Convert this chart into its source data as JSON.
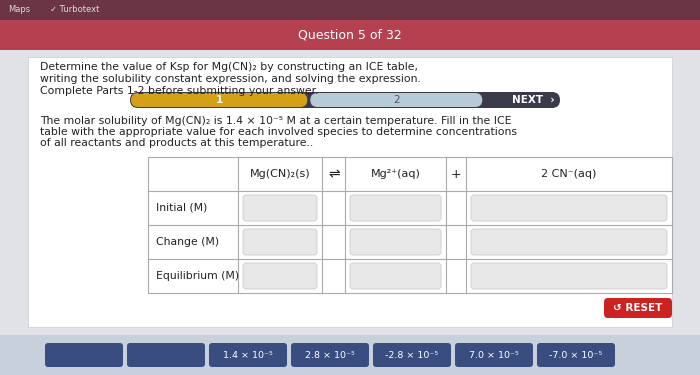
{
  "title": "Question 5 of 32",
  "title_bar_color": "#b54050",
  "browser_bar_color": "#6b3545",
  "bg_color": "#cdd5e0",
  "main_bg": "#e0e2e8",
  "white_bg": "#ffffff",
  "question_text_line1": "Determine the value of Ksp for Mg(CN)₂ by constructing an ICE table,",
  "question_text_line2": "writing the solubility constant expression, and solving the expression.",
  "question_text_line3": "Complete Parts 1-2 before submitting your answer.",
  "progress_bar_dark": "#3a3a4a",
  "progress_bar_gold": "#d4a017",
  "progress_bar_light_blue": "#b8cad8",
  "progress_label1": "1",
  "progress_label2": "2",
  "next_label": "NEXT  ›",
  "body_text_line1": "The molar solubility of Mg(CN)₂ is 1.4 × 10⁻⁵ M at a certain temperature. Fill in the ICE",
  "body_text_line2": "table with the appropriate value for each involved species to determine concentrations",
  "body_text_line3": "of all reactants and products at this temperature..",
  "col_header1": "Mg(CN)₂(s)",
  "col_header2": "Mg²⁺(aq)",
  "col_header3": "2 CN⁻(aq)",
  "arrow": "⇌",
  "plus": "+",
  "row_labels": [
    "Initial (M)",
    "Change (M)",
    "Equilibrium (M)"
  ],
  "cell_bg": "#e8e8e8",
  "reset_btn_color": "#cc2222",
  "reset_text": "↺ RESET",
  "bottom_bar_color": "#c8d0dc",
  "bottom_buttons": [
    "",
    "",
    "1.4 × 10⁻⁵",
    "2.8 × 10⁻⁵",
    "-2.8 × 10⁻⁵",
    "7.0 × 10⁻⁵",
    "-7.0 × 10⁻⁵"
  ],
  "bottom_btn_color": "#3a4d80"
}
